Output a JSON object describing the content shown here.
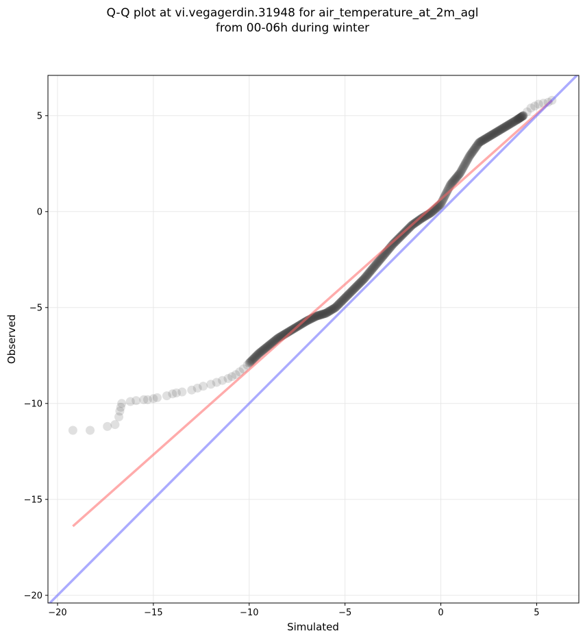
{
  "chart_data": {
    "type": "scatter",
    "title": [
      "Q-Q plot at vi.vegagerdin.31948 for air_temperature_at_2m_agl",
      "from 00-06h during winter"
    ],
    "xlabel": "Simulated",
    "ylabel": "Observed",
    "xlim": [
      -20.5,
      7.2
    ],
    "ylim": [
      -20.4,
      7.1
    ],
    "xticks": [
      -20,
      -15,
      -10,
      -5,
      0,
      5
    ],
    "yticks": [
      -20,
      -15,
      -10,
      -5,
      0,
      5
    ],
    "xtick_labels": [
      "−20",
      "−15",
      "−10",
      "−5",
      "0",
      "5"
    ],
    "ytick_labels": [
      "−20",
      "−15",
      "−10",
      "−5",
      "0",
      "5"
    ],
    "grid": true,
    "colors": {
      "points": "#404040",
      "fit_line": "#ff6666",
      "identity_line": "#6666ff",
      "grid": "#e8e8e8"
    },
    "fit_line": {
      "x": [
        -19.2,
        5.8
      ],
      "y": [
        -16.4,
        5.8
      ]
    },
    "identity_line": {
      "x": [
        -20.5,
        7.2
      ],
      "y": [
        -20.5,
        7.2
      ]
    },
    "outer_points": {
      "x": [
        -19.2,
        -18.3,
        -17.4,
        -17.0,
        -16.8,
        -16.75,
        -16.7,
        -16.65,
        -16.2,
        -15.9,
        -15.5,
        -15.3,
        -15.0,
        -14.8,
        -14.3,
        -14.0,
        -13.8,
        -13.5,
        -13.0,
        -12.7,
        -12.4,
        -12.0,
        -11.7,
        -11.4,
        -11.1,
        -10.9,
        -10.7,
        -10.5,
        -10.3,
        -10.1,
        4.3,
        4.5,
        4.7,
        4.9,
        5.1,
        5.35,
        5.6,
        5.8
      ],
      "y": [
        -11.4,
        -11.4,
        -11.2,
        -11.1,
        -10.7,
        -10.4,
        -10.2,
        -10.0,
        -9.9,
        -9.85,
        -9.8,
        -9.8,
        -9.75,
        -9.7,
        -9.6,
        -9.5,
        -9.45,
        -9.4,
        -9.3,
        -9.2,
        -9.1,
        -9.0,
        -8.9,
        -8.8,
        -8.7,
        -8.6,
        -8.5,
        -8.35,
        -8.2,
        -8.0,
        5.0,
        5.2,
        5.4,
        5.5,
        5.6,
        5.65,
        5.7,
        5.8
      ]
    },
    "curve_points": {
      "x": [
        -10.0,
        -9.5,
        -9.0,
        -8.5,
        -8.0,
        -7.5,
        -7.0,
        -6.5,
        -6.0,
        -5.5,
        -5.0,
        -4.5,
        -4.0,
        -3.5,
        -3.0,
        -2.5,
        -2.0,
        -1.5,
        -1.0,
        -0.5,
        0.0,
        0.5,
        1.0,
        1.5,
        2.0,
        2.5,
        3.0,
        3.5,
        4.0,
        4.3
      ],
      "y": [
        -7.9,
        -7.4,
        -7.0,
        -6.6,
        -6.3,
        -6.0,
        -5.7,
        -5.45,
        -5.3,
        -5.0,
        -4.5,
        -4.0,
        -3.5,
        -2.9,
        -2.3,
        -1.7,
        -1.2,
        -0.7,
        -0.35,
        -0.05,
        0.4,
        1.4,
        2.0,
        2.9,
        3.6,
        3.9,
        4.2,
        4.5,
        4.8,
        5.0
      ]
    }
  }
}
